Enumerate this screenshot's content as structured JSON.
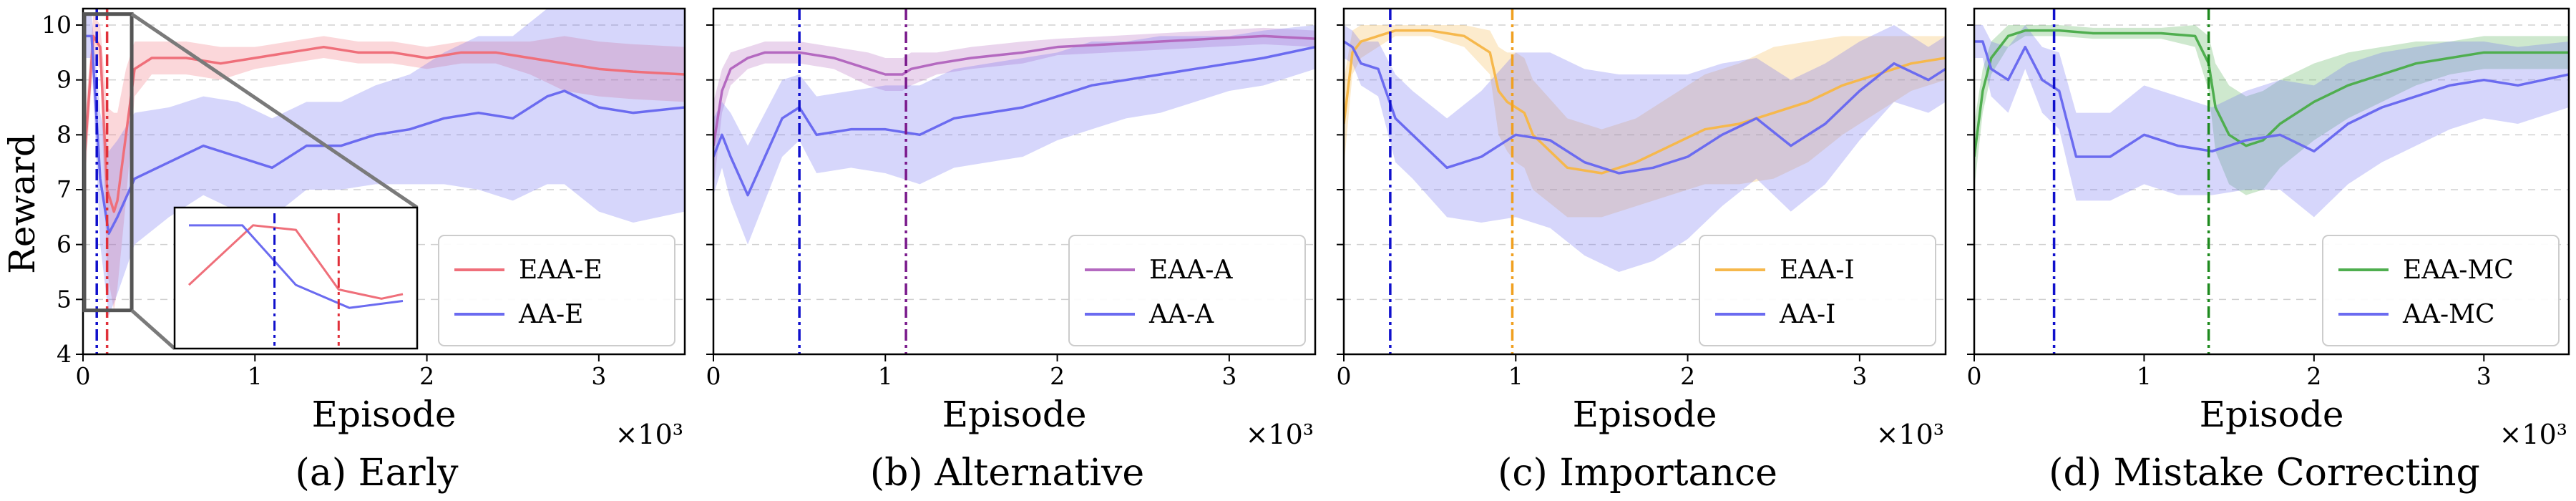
{
  "figure": {
    "ylabel": "Reward",
    "xlabel": "Episode",
    "x_multiplier": "×10³"
  },
  "chart_data": [
    {
      "type": "line",
      "caption": "(a)  Early",
      "xlabel": "Episode",
      "ylabel": "Reward",
      "xlim": [
        0,
        3.5
      ],
      "ylim": [
        4,
        10.3
      ],
      "x_ticks": [
        "0",
        "1",
        "2",
        "3"
      ],
      "y_ticks": [
        "4",
        "5",
        "6",
        "7",
        "8",
        "9",
        "10"
      ],
      "grid": true,
      "legend": "lower right",
      "vlines": [
        {
          "x": 0.08,
          "color": "#1010cc"
        },
        {
          "x": 0.14,
          "color": "#e0303a"
        }
      ],
      "inset": {
        "x_range": [
          0,
          0.2
        ],
        "y_range": [
          4.8,
          10.2
        ]
      },
      "series": [
        {
          "name": "EAA-E",
          "color": "#ef6f7a",
          "x": [
            0,
            0.06,
            0.1,
            0.14,
            0.18,
            0.2,
            0.25,
            0.3,
            0.4,
            0.6,
            0.8,
            1.0,
            1.2,
            1.4,
            1.6,
            1.8,
            2.0,
            2.2,
            2.4,
            2.6,
            2.8,
            3.0,
            3.2,
            3.5
          ],
          "y": [
            7.2,
            9.8,
            9.6,
            7.0,
            6.6,
            6.8,
            8.0,
            9.2,
            9.4,
            9.4,
            9.3,
            9.4,
            9.5,
            9.6,
            9.5,
            9.5,
            9.4,
            9.5,
            9.5,
            9.4,
            9.3,
            9.2,
            9.15,
            9.1
          ],
          "band": [
            0.6,
            0.4,
            0.4,
            1.5,
            1.8,
            1.6,
            1.2,
            0.5,
            0.3,
            0.3,
            0.3,
            0.2,
            0.2,
            0.2,
            0.2,
            0.2,
            0.2,
            0.2,
            0.2,
            0.3,
            0.5,
            0.5,
            0.5,
            0.5
          ]
        },
        {
          "name": "AA-E",
          "color": "#6b6bf0",
          "x": [
            0,
            0.05,
            0.1,
            0.15,
            0.2,
            0.3,
            0.5,
            0.7,
            0.9,
            1.1,
            1.3,
            1.5,
            1.7,
            1.9,
            2.1,
            2.3,
            2.5,
            2.7,
            2.8,
            3.0,
            3.2,
            3.5
          ],
          "y": [
            9.8,
            9.8,
            7.2,
            6.2,
            6.5,
            7.2,
            7.5,
            7.8,
            7.6,
            7.4,
            7.8,
            7.8,
            8.0,
            8.1,
            8.3,
            8.4,
            8.3,
            8.7,
            8.8,
            8.5,
            8.4,
            8.5
          ],
          "band": [
            0.4,
            0.4,
            1.2,
            1.5,
            1.4,
            1.2,
            1.0,
            0.9,
            1.0,
            0.9,
            0.8,
            0.8,
            0.9,
            1.0,
            1.2,
            1.4,
            1.5,
            1.6,
            1.7,
            1.9,
            2.0,
            1.9
          ]
        }
      ]
    },
    {
      "type": "line",
      "caption": "(b)  Alternative",
      "xlabel": "Episode",
      "ylabel": "",
      "xlim": [
        0,
        3.5
      ],
      "ylim": [
        4,
        10.3
      ],
      "x_ticks": [
        "0",
        "1",
        "2",
        "3"
      ],
      "y_ticks": [],
      "grid": true,
      "legend": "lower right",
      "vlines": [
        {
          "x": 0.5,
          "color": "#1010cc"
        },
        {
          "x": 1.12,
          "color": "#7a1a8c"
        }
      ],
      "series": [
        {
          "name": "EAA-A",
          "color": "#b469c0",
          "x": [
            0,
            0.05,
            0.1,
            0.2,
            0.3,
            0.5,
            0.7,
            0.9,
            1.0,
            1.1,
            1.15,
            1.3,
            1.5,
            1.8,
            2.0,
            2.3,
            2.6,
            2.9,
            3.2,
            3.5
          ],
          "y": [
            7.8,
            8.8,
            9.2,
            9.4,
            9.5,
            9.5,
            9.4,
            9.2,
            9.1,
            9.1,
            9.2,
            9.3,
            9.4,
            9.5,
            9.6,
            9.65,
            9.7,
            9.75,
            9.8,
            9.75
          ],
          "band": [
            0.8,
            0.4,
            0.3,
            0.2,
            0.2,
            0.2,
            0.2,
            0.3,
            0.3,
            0.3,
            0.3,
            0.2,
            0.2,
            0.2,
            0.15,
            0.15,
            0.15,
            0.15,
            0.15,
            0.15
          ]
        },
        {
          "name": "AA-A",
          "color": "#6b6bf0",
          "x": [
            0,
            0.05,
            0.1,
            0.2,
            0.3,
            0.4,
            0.5,
            0.6,
            0.8,
            1.0,
            1.2,
            1.4,
            1.6,
            1.8,
            2.0,
            2.2,
            2.4,
            2.6,
            2.8,
            3.0,
            3.2,
            3.5
          ],
          "y": [
            7.6,
            8.0,
            7.6,
            6.9,
            7.6,
            8.3,
            8.5,
            8.0,
            8.1,
            8.1,
            8.0,
            8.3,
            8.4,
            8.5,
            8.7,
            8.9,
            9.0,
            9.1,
            9.2,
            9.3,
            9.4,
            9.6
          ],
          "band": [
            0.7,
            0.6,
            0.8,
            0.9,
            0.8,
            0.7,
            0.6,
            0.7,
            0.7,
            0.8,
            0.9,
            0.9,
            0.9,
            0.9,
            0.8,
            0.8,
            0.7,
            0.7,
            0.6,
            0.5,
            0.5,
            0.4
          ]
        }
      ]
    },
    {
      "type": "line",
      "caption": "(c)  Importance",
      "xlabel": "Episode",
      "ylabel": "",
      "xlim": [
        0,
        3.5
      ],
      "ylim": [
        4,
        10.3
      ],
      "x_ticks": [
        "0",
        "1",
        "2",
        "3"
      ],
      "y_ticks": [],
      "grid": true,
      "legend": "lower right",
      "vlines": [
        {
          "x": 0.27,
          "color": "#1010cc"
        },
        {
          "x": 0.98,
          "color": "#f0a020"
        }
      ],
      "series": [
        {
          "name": "EAA-I",
          "color": "#f6b84c",
          "x": [
            0,
            0.05,
            0.1,
            0.2,
            0.3,
            0.5,
            0.7,
            0.85,
            0.9,
            0.95,
            1.0,
            1.05,
            1.1,
            1.3,
            1.5,
            1.7,
            1.9,
            2.1,
            2.3,
            2.5,
            2.7,
            2.9,
            3.1,
            3.3,
            3.5
          ],
          "y": [
            8.2,
            9.5,
            9.7,
            9.8,
            9.9,
            9.9,
            9.8,
            9.5,
            8.8,
            8.6,
            8.5,
            8.4,
            8.0,
            7.4,
            7.3,
            7.5,
            7.8,
            8.1,
            8.2,
            8.4,
            8.6,
            8.9,
            9.1,
            9.3,
            9.4
          ],
          "band": [
            0.8,
            0.4,
            0.3,
            0.2,
            0.1,
            0.1,
            0.2,
            0.4,
            0.8,
            0.9,
            1.0,
            1.0,
            1.0,
            0.9,
            0.8,
            0.8,
            0.9,
            1.0,
            1.1,
            1.2,
            1.1,
            0.9,
            0.7,
            0.5,
            0.4
          ]
        },
        {
          "name": "AA-I",
          "color": "#6b6bf0",
          "x": [
            0,
            0.05,
            0.1,
            0.2,
            0.3,
            0.4,
            0.6,
            0.8,
            1.0,
            1.2,
            1.4,
            1.6,
            1.8,
            2.0,
            2.2,
            2.4,
            2.6,
            2.8,
            3.0,
            3.2,
            3.4,
            3.5
          ],
          "y": [
            9.7,
            9.6,
            9.3,
            9.2,
            8.3,
            8.0,
            7.4,
            7.6,
            8.0,
            7.9,
            7.5,
            7.3,
            7.4,
            7.6,
            8.0,
            8.3,
            7.8,
            8.2,
            8.8,
            9.3,
            9.0,
            9.2
          ],
          "band": [
            0.3,
            0.3,
            0.4,
            0.5,
            0.8,
            0.8,
            0.9,
            1.2,
            1.5,
            1.6,
            1.7,
            1.8,
            1.7,
            1.5,
            1.3,
            1.1,
            1.2,
            1.1,
            0.9,
            0.7,
            0.6,
            0.6
          ]
        }
      ]
    },
    {
      "type": "line",
      "caption": "(d)  Mistake Correcting",
      "xlabel": "Episode",
      "ylabel": "",
      "xlim": [
        0,
        3.5
      ],
      "ylim": [
        4,
        10.3
      ],
      "x_ticks": [
        "0",
        "1",
        "2",
        "3"
      ],
      "y_ticks": [],
      "grid": true,
      "legend": "lower right",
      "vlines": [
        {
          "x": 0.47,
          "color": "#1010cc"
        },
        {
          "x": 1.38,
          "color": "#1e8a1e"
        }
      ],
      "series": [
        {
          "name": "EAA-MC",
          "color": "#4fae4f",
          "x": [
            0,
            0.05,
            0.1,
            0.2,
            0.3,
            0.5,
            0.7,
            0.9,
            1.1,
            1.3,
            1.38,
            1.42,
            1.5,
            1.6,
            1.7,
            1.8,
            2.0,
            2.2,
            2.4,
            2.6,
            2.8,
            3.0,
            3.2,
            3.5
          ],
          "y": [
            7.6,
            8.8,
            9.4,
            9.8,
            9.9,
            9.9,
            9.85,
            9.85,
            9.85,
            9.8,
            9.3,
            8.5,
            8.0,
            7.8,
            7.9,
            8.2,
            8.6,
            8.9,
            9.1,
            9.3,
            9.4,
            9.5,
            9.5,
            9.5
          ],
          "band": [
            0.6,
            0.4,
            0.3,
            0.2,
            0.1,
            0.1,
            0.1,
            0.1,
            0.1,
            0.2,
            0.5,
            0.8,
            0.9,
            0.9,
            0.9,
            0.8,
            0.7,
            0.6,
            0.5,
            0.4,
            0.3,
            0.3,
            0.3,
            0.3
          ]
        },
        {
          "name": "AA-MC",
          "color": "#6b6bf0",
          "x": [
            0,
            0.05,
            0.1,
            0.2,
            0.3,
            0.4,
            0.5,
            0.6,
            0.8,
            1.0,
            1.2,
            1.4,
            1.6,
            1.8,
            2.0,
            2.2,
            2.4,
            2.6,
            2.8,
            3.0,
            3.2,
            3.5
          ],
          "y": [
            9.7,
            9.7,
            9.2,
            9.0,
            9.6,
            9.0,
            8.8,
            7.6,
            7.6,
            8.0,
            7.8,
            7.7,
            7.9,
            8.0,
            7.7,
            8.2,
            8.5,
            8.7,
            8.9,
            9.0,
            8.9,
            9.1
          ],
          "band": [
            0.3,
            0.3,
            0.5,
            0.6,
            0.4,
            0.6,
            0.7,
            0.8,
            0.8,
            0.9,
            0.9,
            0.8,
            0.9,
            1.0,
            1.2,
            1.1,
            1.0,
            0.9,
            0.8,
            0.7,
            0.7,
            0.6
          ]
        }
      ]
    }
  ]
}
